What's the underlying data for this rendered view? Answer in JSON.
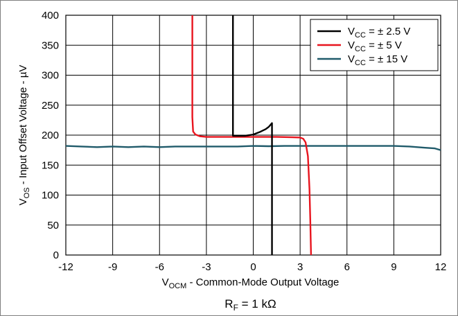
{
  "chart_data": {
    "type": "line",
    "xlabel": {
      "main": "V",
      "sub": "OCM",
      "rest": " - Common-Mode Output Voltage"
    },
    "ylabel": {
      "main": "V",
      "sub": "OS",
      "rest": " - Input Offset Voltage - µV"
    },
    "caption": {
      "main": "R",
      "sub": "F",
      "rest": " = 1 kΩ"
    },
    "xlim": [
      -12,
      12
    ],
    "ylim": [
      0,
      400
    ],
    "xticks": [
      -12,
      -9,
      -6,
      -3,
      0,
      3,
      6,
      9,
      12
    ],
    "yticks": [
      0,
      50,
      100,
      150,
      200,
      250,
      300,
      350,
      400
    ],
    "xtick_labels": [
      "-12",
      "-9",
      "-6",
      "-3",
      "0",
      "3",
      "6",
      "9",
      "12"
    ],
    "ytick_labels": [
      "0",
      "50",
      "100",
      "150",
      "200",
      "250",
      "300",
      "350",
      "400"
    ],
    "grid": true,
    "legend_position": "top-right",
    "series": [
      {
        "name": {
          "main": "V",
          "sub": "CC",
          "rest": " = ± 2.5 V"
        },
        "color": "#000000",
        "points": [
          [
            -1.3,
            400
          ],
          [
            -1.3,
            199
          ],
          [
            -0.5,
            199
          ],
          [
            0.0,
            201
          ],
          [
            0.4,
            205
          ],
          [
            0.8,
            210
          ],
          [
            1.0,
            214
          ],
          [
            1.2,
            220
          ],
          [
            1.2,
            200
          ],
          [
            1.2,
            0
          ]
        ]
      },
      {
        "name": {
          "main": "V",
          "sub": "CC",
          "rest": " = ± 5 V"
        },
        "color": "#e8141e",
        "points": [
          [
            -3.9,
            400
          ],
          [
            -3.9,
            230
          ],
          [
            -3.85,
            206
          ],
          [
            -3.7,
            201
          ],
          [
            -3.4,
            198
          ],
          [
            -3.0,
            197
          ],
          [
            0.0,
            197
          ],
          [
            1.5,
            197
          ],
          [
            2.5,
            196.5
          ],
          [
            3.0,
            196
          ],
          [
            3.2,
            194
          ],
          [
            3.35,
            188
          ],
          [
            3.5,
            165
          ],
          [
            3.6,
            110
          ],
          [
            3.65,
            60
          ],
          [
            3.7,
            0
          ]
        ]
      },
      {
        "name": {
          "main": "V",
          "sub": "CC",
          "rest": " = ± 15 V"
        },
        "color": "#1f5a6a",
        "points": [
          [
            -12,
            182
          ],
          [
            -11,
            181
          ],
          [
            -10,
            180
          ],
          [
            -9,
            181
          ],
          [
            -8,
            180
          ],
          [
            -7,
            181
          ],
          [
            -6,
            180
          ],
          [
            -5,
            181
          ],
          [
            -4,
            181
          ],
          [
            -3,
            181
          ],
          [
            -2,
            181
          ],
          [
            -1,
            181
          ],
          [
            0,
            182
          ],
          [
            1,
            181.5
          ],
          [
            2,
            182
          ],
          [
            3,
            182
          ],
          [
            4,
            182
          ],
          [
            5,
            182
          ],
          [
            6,
            182
          ],
          [
            7,
            182
          ],
          [
            8,
            182
          ],
          [
            9,
            182
          ],
          [
            10,
            181
          ],
          [
            11,
            179
          ],
          [
            11.6,
            178
          ],
          [
            12,
            175
          ]
        ]
      }
    ]
  }
}
